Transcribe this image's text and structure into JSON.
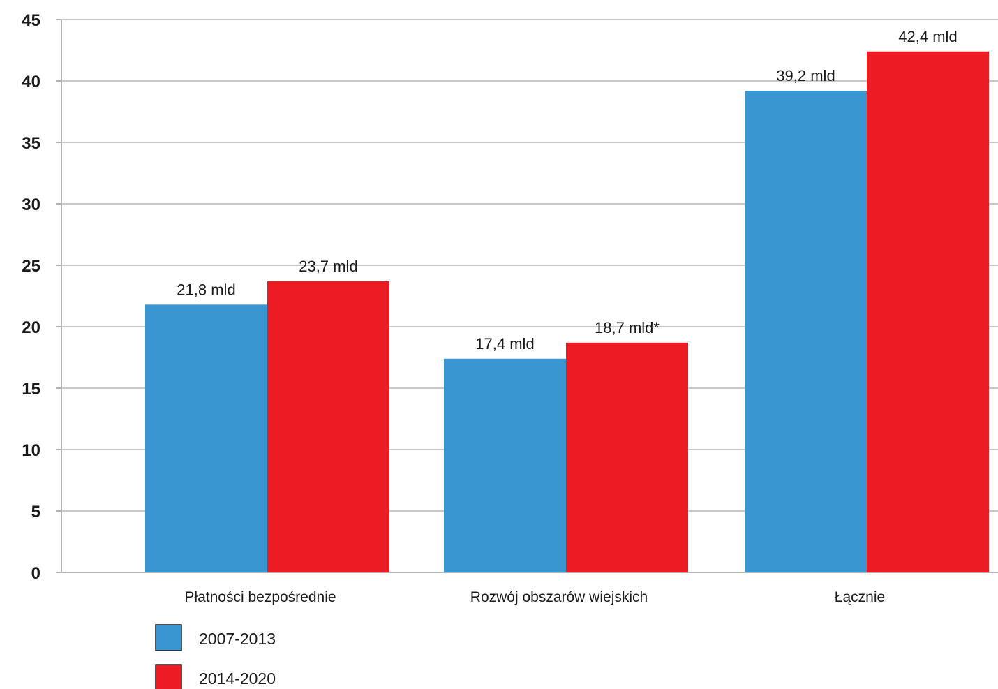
{
  "chart_data": {
    "type": "bar",
    "categories": [
      "Płatności bezpośrednie",
      "Rozwój obszarów wiejskich",
      "Łącznie"
    ],
    "series": [
      {
        "name": "2007-2013",
        "color": "#3a96d0",
        "values": [
          21.8,
          17.4,
          39.2
        ],
        "labels": [
          "21,8 mld",
          "17,4 mld",
          "39,2 mld"
        ]
      },
      {
        "name": "2014-2020",
        "color": "#ec1c24",
        "values": [
          23.7,
          18.7,
          42.4
        ],
        "labels": [
          "23,7 mld",
          "18,7 mld*",
          "42,4 mld"
        ]
      }
    ],
    "yticks": [
      0,
      5,
      10,
      15,
      20,
      25,
      30,
      35,
      40,
      45
    ],
    "ylim": [
      0,
      45
    ],
    "grid": true,
    "legend_position": "bottom-left"
  }
}
